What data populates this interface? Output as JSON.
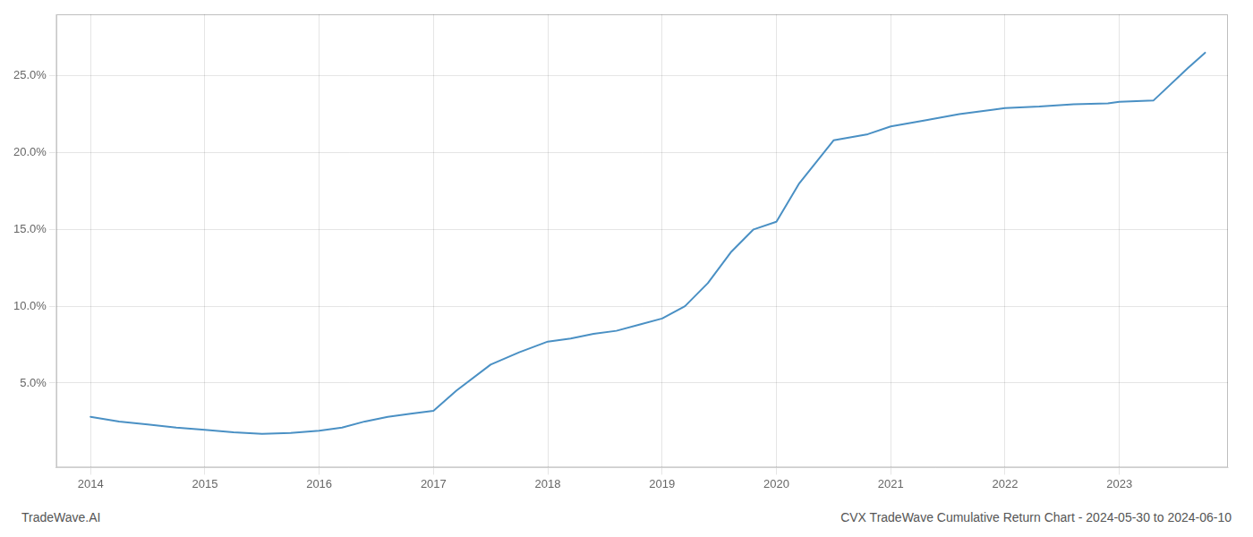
{
  "chart_data": {
    "type": "line",
    "annotations": [
      "TradeWave.AI",
      "CVX TradeWave Cumulative Return Chart - 2024-05-30 to 2024-06-10"
    ],
    "color": "#4a90c4",
    "grid": true,
    "x": [
      2014.0,
      2014.25,
      2014.5,
      2014.75,
      2015.0,
      2015.25,
      2015.5,
      2015.75,
      2016.0,
      2016.2,
      2016.4,
      2016.6,
      2016.8,
      2017.0,
      2017.2,
      2017.5,
      2017.75,
      2018.0,
      2018.2,
      2018.4,
      2018.6,
      2018.8,
      2019.0,
      2019.2,
      2019.4,
      2019.6,
      2019.8,
      2020.0,
      2020.2,
      2020.5,
      2020.8,
      2021.0,
      2021.3,
      2021.6,
      2021.9,
      2022.0,
      2022.3,
      2022.6,
      2022.9,
      2023.0,
      2023.3,
      2023.6,
      2023.75
    ],
    "values": [
      2.8,
      2.5,
      2.3,
      2.1,
      1.95,
      1.8,
      1.7,
      1.75,
      1.9,
      2.1,
      2.5,
      2.8,
      3.0,
      3.2,
      4.5,
      6.2,
      7.0,
      7.7,
      7.9,
      8.2,
      8.4,
      8.8,
      9.2,
      10.0,
      11.5,
      13.5,
      15.0,
      15.5,
      18.0,
      20.8,
      21.2,
      21.7,
      22.1,
      22.5,
      22.8,
      22.9,
      23.0,
      23.15,
      23.2,
      23.3,
      23.4,
      25.5,
      26.5
    ],
    "xlim": [
      2013.7,
      2023.95
    ],
    "xticks": [
      2014,
      2015,
      2016,
      2017,
      2018,
      2019,
      2020,
      2021,
      2022,
      2023
    ],
    "ylim": [
      -0.5,
      29.0
    ],
    "yticks": [
      {
        "value": 5.0,
        "label": "5.0%"
      },
      {
        "value": 10.0,
        "label": "10.0%"
      },
      {
        "value": 15.0,
        "label": "15.0%"
      },
      {
        "value": 20.0,
        "label": "20.0%"
      },
      {
        "value": 25.0,
        "label": "25.0%"
      }
    ]
  }
}
